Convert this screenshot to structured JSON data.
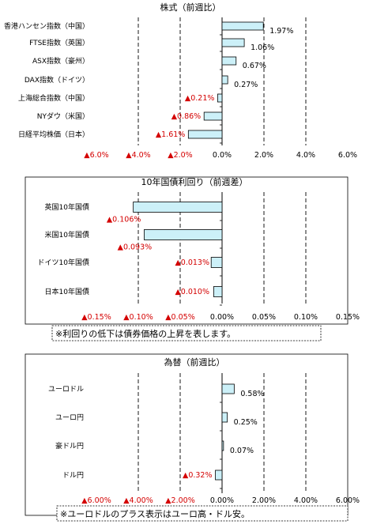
{
  "colors": {
    "bar_fill": "#ccf0f8",
    "bar_stroke": "#000000",
    "negative_text": "#d40000",
    "text": "#000000",
    "grid": "#000000"
  },
  "chart_data": [
    {
      "type": "bar",
      "orientation": "horizontal",
      "title": "株式（前週比）",
      "categories": [
        "香港ハンセン指数（中国）",
        "FTSE指数（英国）",
        "ASX指数（豪州）",
        "DAX指数（ドイツ）",
        "上海総合指数（中国）",
        "NYダウ（米国）",
        "日経平均株価（日本）"
      ],
      "values": [
        1.97,
        1.06,
        0.67,
        0.27,
        -0.21,
        -0.86,
        -1.61
      ],
      "data_labels": [
        "1.97%",
        "1.06%",
        "0.67%",
        "0.27%",
        "▲0.21%",
        "▲0.86%",
        "▲1.61%"
      ],
      "xlim": [
        -6,
        6
      ],
      "tick_values": [
        -6,
        -4,
        -2,
        0,
        2,
        4,
        6
      ],
      "tick_labels": [
        "▲6.0%",
        "▲4.0%",
        "▲2.0%",
        "0.0%",
        "2.0%",
        "4.0%",
        "6.0%"
      ],
      "grid": "vertical dashed",
      "note": ""
    },
    {
      "type": "bar",
      "orientation": "horizontal",
      "title": "10年国債利回り（前週差）",
      "categories": [
        "英国10年国債",
        "米国10年国債",
        "ドイツ10年国債",
        "日本10年国債"
      ],
      "values": [
        -0.106,
        -0.093,
        -0.013,
        -0.01
      ],
      "data_labels": [
        "▲0.106%",
        "▲0.093%",
        "▲0.013%",
        "▲0.010%"
      ],
      "xlim": [
        -0.15,
        0.15
      ],
      "tick_values": [
        -0.15,
        -0.1,
        -0.05,
        0,
        0.05,
        0.1,
        0.15
      ],
      "tick_labels": [
        "▲0.15%",
        "▲0.10%",
        "▲0.05%",
        "0.00%",
        "0.05%",
        "0.10%",
        "0.15%"
      ],
      "grid": "vertical dashed",
      "note": "※利回りの低下は債券価格の上昇を表します。"
    },
    {
      "type": "bar",
      "orientation": "horizontal",
      "title": "為替（前週比）",
      "categories": [
        "ユーロドル",
        "ユーロ円",
        "豪ドル円",
        "ドル円"
      ],
      "values": [
        0.58,
        0.25,
        0.07,
        -0.32
      ],
      "data_labels": [
        "0.58%",
        "0.25%",
        "0.07%",
        "▲0.32%"
      ],
      "xlim": [
        -6,
        6
      ],
      "tick_values": [
        -6,
        -4,
        -2,
        0,
        2,
        4,
        6
      ],
      "tick_labels": [
        "▲6.00%",
        "▲4.00%",
        "▲2.00%",
        "0.00%",
        "2.00%",
        "4.00%",
        "6.00%"
      ],
      "grid": "vertical dashed",
      "note": "※ユーロドルのプラス表示はユーロ高・ドル安。"
    }
  ]
}
